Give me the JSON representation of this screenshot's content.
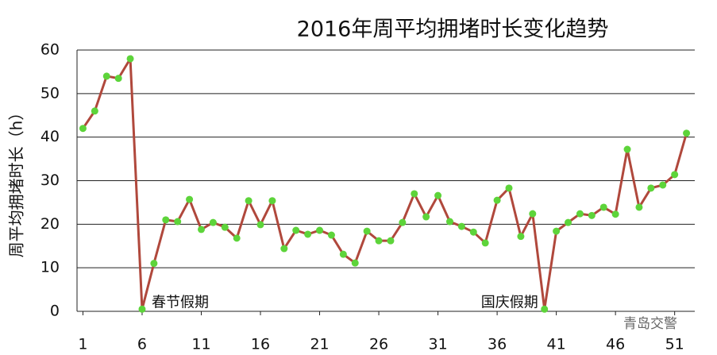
{
  "chart_data": {
    "type": "line",
    "title": "2016年周平均拥堵时长变化趋势",
    "y_label": "周平均拥堵时长（h）",
    "x": [
      1,
      2,
      3,
      4,
      5,
      6,
      7,
      8,
      9,
      10,
      11,
      12,
      13,
      14,
      15,
      16,
      17,
      18,
      19,
      20,
      21,
      22,
      23,
      24,
      25,
      26,
      27,
      28,
      29,
      30,
      31,
      32,
      33,
      34,
      35,
      36,
      37,
      38,
      39,
      40,
      41,
      42,
      43,
      44,
      45,
      46,
      47,
      48,
      49,
      50,
      51,
      52
    ],
    "series": [
      {
        "name": "周平均拥堵时长",
        "color": "#b0483c",
        "marker_color": "#5dd43a",
        "values": [
          42,
          46,
          54,
          53.5,
          58,
          0.5,
          11,
          21,
          20.6,
          25.7,
          18.8,
          20.4,
          19.3,
          16.8,
          25.4,
          19.9,
          25.4,
          14.4,
          18.6,
          17.7,
          18.6,
          17.5,
          13.1,
          11.1,
          18.4,
          16.2,
          16.2,
          20.4,
          27,
          21.7,
          26.6,
          20.6,
          19.5,
          18.2,
          15.7,
          25.5,
          28.3,
          17.2,
          22.4,
          0.5,
          18.4,
          20.4,
          22.4,
          22,
          23.9,
          22.3,
          37.2,
          23.9,
          28.3,
          29,
          31.4,
          40.9
        ]
      }
    ],
    "xlim": [
      0.5,
      52.7
    ],
    "xticks": [
      1,
      6,
      11,
      16,
      21,
      26,
      31,
      36,
      41,
      46,
      51
    ],
    "ylim": [
      0,
      60
    ],
    "yticks": [
      0,
      10,
      20,
      30,
      40,
      50,
      60
    ],
    "grid": true,
    "annotations": [
      {
        "text": "春节假期",
        "x": 6,
        "y": 0.5
      },
      {
        "text": "国庆假期",
        "x": 40,
        "y": 0.5
      }
    ],
    "watermark": "青岛交警"
  }
}
